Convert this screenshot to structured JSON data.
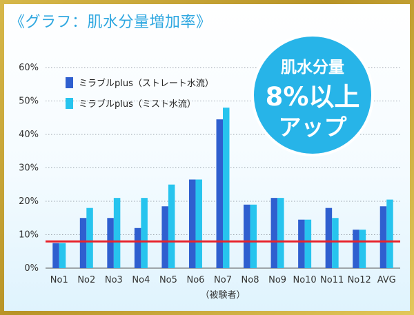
{
  "title": "《グラフ：肌水分量増加率》",
  "badge": {
    "lines": [
      "肌水分量",
      "8%以上",
      "アップ"
    ]
  },
  "colors": {
    "series1": "#2f5fcf",
    "series2": "#27c4ee",
    "reference_line": "#e8242b",
    "badge": "#27b4e8",
    "title": "#2ea7e0"
  },
  "chart_data": {
    "type": "bar",
    "title": "",
    "xlabel": "（被験者）",
    "ylabel": "",
    "ylim": [
      0,
      60
    ],
    "y_ticks": [
      "0%",
      "10%",
      "20%",
      "30%",
      "40%",
      "50%",
      "60%"
    ],
    "categories": [
      "No1",
      "No2",
      "No3",
      "No4",
      "No5",
      "No6",
      "No7",
      "No8",
      "No9",
      "No10",
      "No11",
      "No12",
      "AVG"
    ],
    "series": [
      {
        "name": "ミラブルplus（ストレート水流）",
        "values": [
          7.5,
          15,
          15,
          12,
          18.5,
          26.5,
          44.5,
          19,
          21,
          14.5,
          18,
          11.5,
          18.5
        ]
      },
      {
        "name": "ミラブルplus（ミスト水流）",
        "values": [
          7.5,
          18,
          21,
          21,
          25,
          26.5,
          48,
          19,
          21,
          14.5,
          15,
          11.5,
          20.5
        ]
      }
    ],
    "reference_line": 8,
    "grid": "horizontal dotted",
    "legend_position": "top-left"
  }
}
